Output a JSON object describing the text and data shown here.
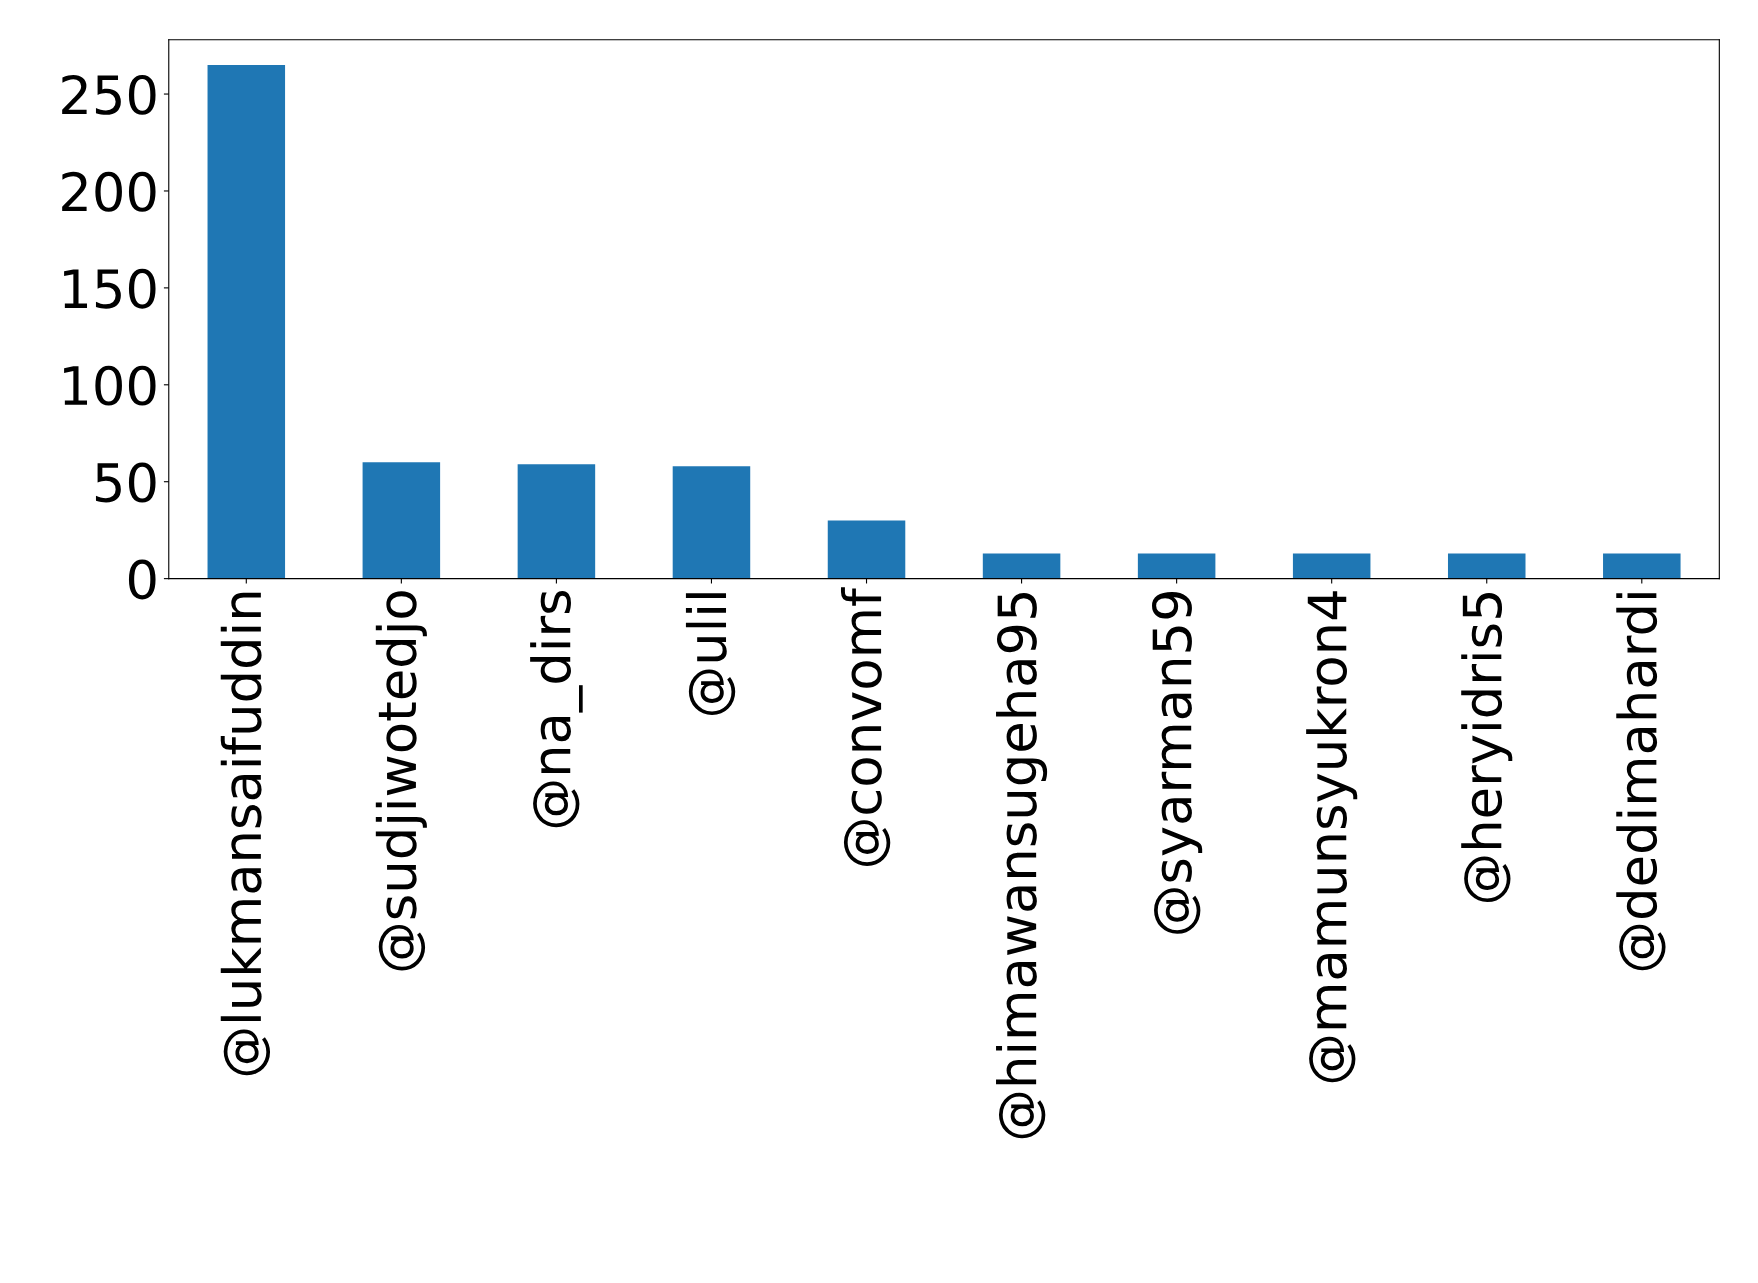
{
  "chart_data": {
    "type": "bar",
    "categories": [
      "@lukmansaifuddin",
      "@sudjiwotedjo",
      "@na_dirs",
      "@ulil",
      "@convomf",
      "@himawansugeha95",
      "@syarman59",
      "@mamunsyukron4",
      "@heryidris5",
      "@dedimahardi"
    ],
    "values": [
      265,
      60,
      59,
      58,
      30,
      13,
      13,
      13,
      13,
      13
    ],
    "color": "#1f77b4",
    "ylim": [
      0,
      278
    ],
    "yticks": [
      0,
      50,
      100,
      150,
      200,
      250
    ],
    "grid": false,
    "legend": false
  }
}
